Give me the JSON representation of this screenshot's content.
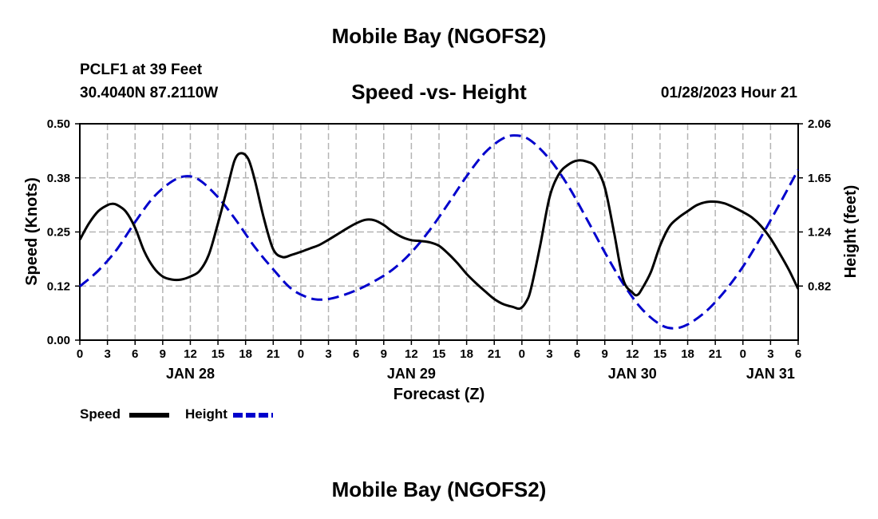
{
  "header": {
    "title_top": "Mobile Bay (NGOFS2)",
    "station_name": "PCLF1 at 39 Feet",
    "station_coords": "30.4040N  87.2110W",
    "subtitle": "Speed -vs- Height",
    "forecast_time": "01/28/2023 Hour 21",
    "title_bottom": "Mobile Bay (NGOFS2)"
  },
  "legend": {
    "speed_label": "Speed",
    "height_label": "Height",
    "speed_color": "#000000",
    "height_color": "#0000cc"
  },
  "chart_data": {
    "type": "line",
    "title": "Speed -vs- Height",
    "xlabel": "Forecast (Z)",
    "ylabel_left": "Speed (Knots)",
    "ylabel_right": "Height (feet)",
    "x_unit": "hours since 2023-01-28 00Z",
    "xlim": [
      0,
      78
    ],
    "ylim_left": [
      0.0,
      0.5
    ],
    "ylim_right": [
      0.41,
      2.06
    ],
    "y_ticks_left": [
      "0.00",
      "0.12",
      "0.25",
      "0.38",
      "0.50"
    ],
    "y_ticks_right": [
      "0.82",
      "1.24",
      "1.65",
      "2.06"
    ],
    "x_tick_labels": [
      "0",
      "3",
      "6",
      "9",
      "12",
      "15",
      "18",
      "21",
      "0",
      "3",
      "6",
      "9",
      "12",
      "15",
      "18",
      "21",
      "0",
      "3",
      "6",
      "9",
      "12",
      "15",
      "18",
      "21",
      "0",
      "3",
      "6"
    ],
    "date_labels": [
      {
        "label": "JAN 28",
        "hour": 12
      },
      {
        "label": "JAN 29",
        "hour": 36
      },
      {
        "label": "JAN 30",
        "hour": 60
      },
      {
        "label": "JAN 31",
        "hour": 75
      }
    ],
    "grid": true,
    "legend_position": "bottom-left",
    "series": [
      {
        "name": "Speed",
        "axis": "left",
        "color": "#000000",
        "style": "solid",
        "points": [
          [
            0,
            0.232
          ],
          [
            1,
            0.27
          ],
          [
            2,
            0.298
          ],
          [
            3,
            0.312
          ],
          [
            3.5,
            0.315
          ],
          [
            4,
            0.313
          ],
          [
            5,
            0.297
          ],
          [
            6,
            0.26
          ],
          [
            7,
            0.205
          ],
          [
            8,
            0.168
          ],
          [
            9,
            0.147
          ],
          [
            10,
            0.14
          ],
          [
            11,
            0.14
          ],
          [
            12,
            0.147
          ],
          [
            13,
            0.16
          ],
          [
            14,
            0.197
          ],
          [
            15,
            0.27
          ],
          [
            16,
            0.35
          ],
          [
            16.8,
            0.415
          ],
          [
            17.5,
            0.432
          ],
          [
            18.3,
            0.418
          ],
          [
            19,
            0.37
          ],
          [
            20,
            0.28
          ],
          [
            21,
            0.21
          ],
          [
            22,
            0.192
          ],
          [
            23,
            0.197
          ],
          [
            24,
            0.204
          ],
          [
            25,
            0.212
          ],
          [
            26,
            0.22
          ],
          [
            27,
            0.232
          ],
          [
            28,
            0.245
          ],
          [
            29,
            0.258
          ],
          [
            30,
            0.27
          ],
          [
            31,
            0.278
          ],
          [
            32,
            0.277
          ],
          [
            33,
            0.266
          ],
          [
            34,
            0.25
          ],
          [
            35,
            0.238
          ],
          [
            36,
            0.231
          ],
          [
            37,
            0.229
          ],
          [
            38,
            0.226
          ],
          [
            39,
            0.218
          ],
          [
            40,
            0.2
          ],
          [
            41,
            0.178
          ],
          [
            42,
            0.153
          ],
          [
            43,
            0.132
          ],
          [
            44,
            0.113
          ],
          [
            45,
            0.095
          ],
          [
            46,
            0.083
          ],
          [
            47,
            0.077
          ],
          [
            47.8,
            0.073
          ],
          [
            48.5,
            0.09
          ],
          [
            49,
            0.12
          ],
          [
            50,
            0.22
          ],
          [
            51,
            0.33
          ],
          [
            52,
            0.383
          ],
          [
            53,
            0.405
          ],
          [
            54,
            0.415
          ],
          [
            55,
            0.413
          ],
          [
            56,
            0.4
          ],
          [
            57,
            0.353
          ],
          [
            58,
            0.25
          ],
          [
            59,
            0.14
          ],
          [
            60,
            0.11
          ],
          [
            60.5,
            0.104
          ],
          [
            61,
            0.117
          ],
          [
            62,
            0.157
          ],
          [
            63,
            0.218
          ],
          [
            64,
            0.262
          ],
          [
            65,
            0.283
          ],
          [
            66,
            0.298
          ],
          [
            67,
            0.312
          ],
          [
            68,
            0.319
          ],
          [
            69,
            0.32
          ],
          [
            70,
            0.316
          ],
          [
            71,
            0.307
          ],
          [
            72,
            0.296
          ],
          [
            73,
            0.283
          ],
          [
            74,
            0.263
          ],
          [
            75,
            0.235
          ],
          [
            76,
            0.2
          ],
          [
            77,
            0.162
          ],
          [
            78,
            0.118
          ]
        ]
      },
      {
        "name": "Height",
        "axis": "right",
        "color": "#0000cc",
        "style": "dashed",
        "points": [
          [
            0,
            0.82
          ],
          [
            2,
            0.94
          ],
          [
            4,
            1.1
          ],
          [
            6,
            1.31
          ],
          [
            8,
            1.5
          ],
          [
            10,
            1.62
          ],
          [
            11.5,
            1.66
          ],
          [
            13,
            1.63
          ],
          [
            15,
            1.5
          ],
          [
            17,
            1.32
          ],
          [
            19,
            1.12
          ],
          [
            21,
            0.95
          ],
          [
            23,
            0.8
          ],
          [
            25,
            0.73
          ],
          [
            26.5,
            0.72
          ],
          [
            28,
            0.74
          ],
          [
            30,
            0.79
          ],
          [
            32,
            0.86
          ],
          [
            34,
            0.95
          ],
          [
            36,
            1.08
          ],
          [
            38,
            1.25
          ],
          [
            40,
            1.45
          ],
          [
            42,
            1.66
          ],
          [
            44,
            1.84
          ],
          [
            46,
            1.95
          ],
          [
            47.5,
            1.97
          ],
          [
            49,
            1.93
          ],
          [
            51,
            1.79
          ],
          [
            53,
            1.59
          ],
          [
            55,
            1.34
          ],
          [
            57,
            1.08
          ],
          [
            59,
            0.84
          ],
          [
            61,
            0.65
          ],
          [
            63,
            0.53
          ],
          [
            64.5,
            0.5
          ],
          [
            66,
            0.53
          ],
          [
            68,
            0.63
          ],
          [
            70,
            0.78
          ],
          [
            72,
            0.97
          ],
          [
            74,
            1.2
          ],
          [
            76,
            1.45
          ],
          [
            78,
            1.71
          ]
        ]
      }
    ]
  }
}
